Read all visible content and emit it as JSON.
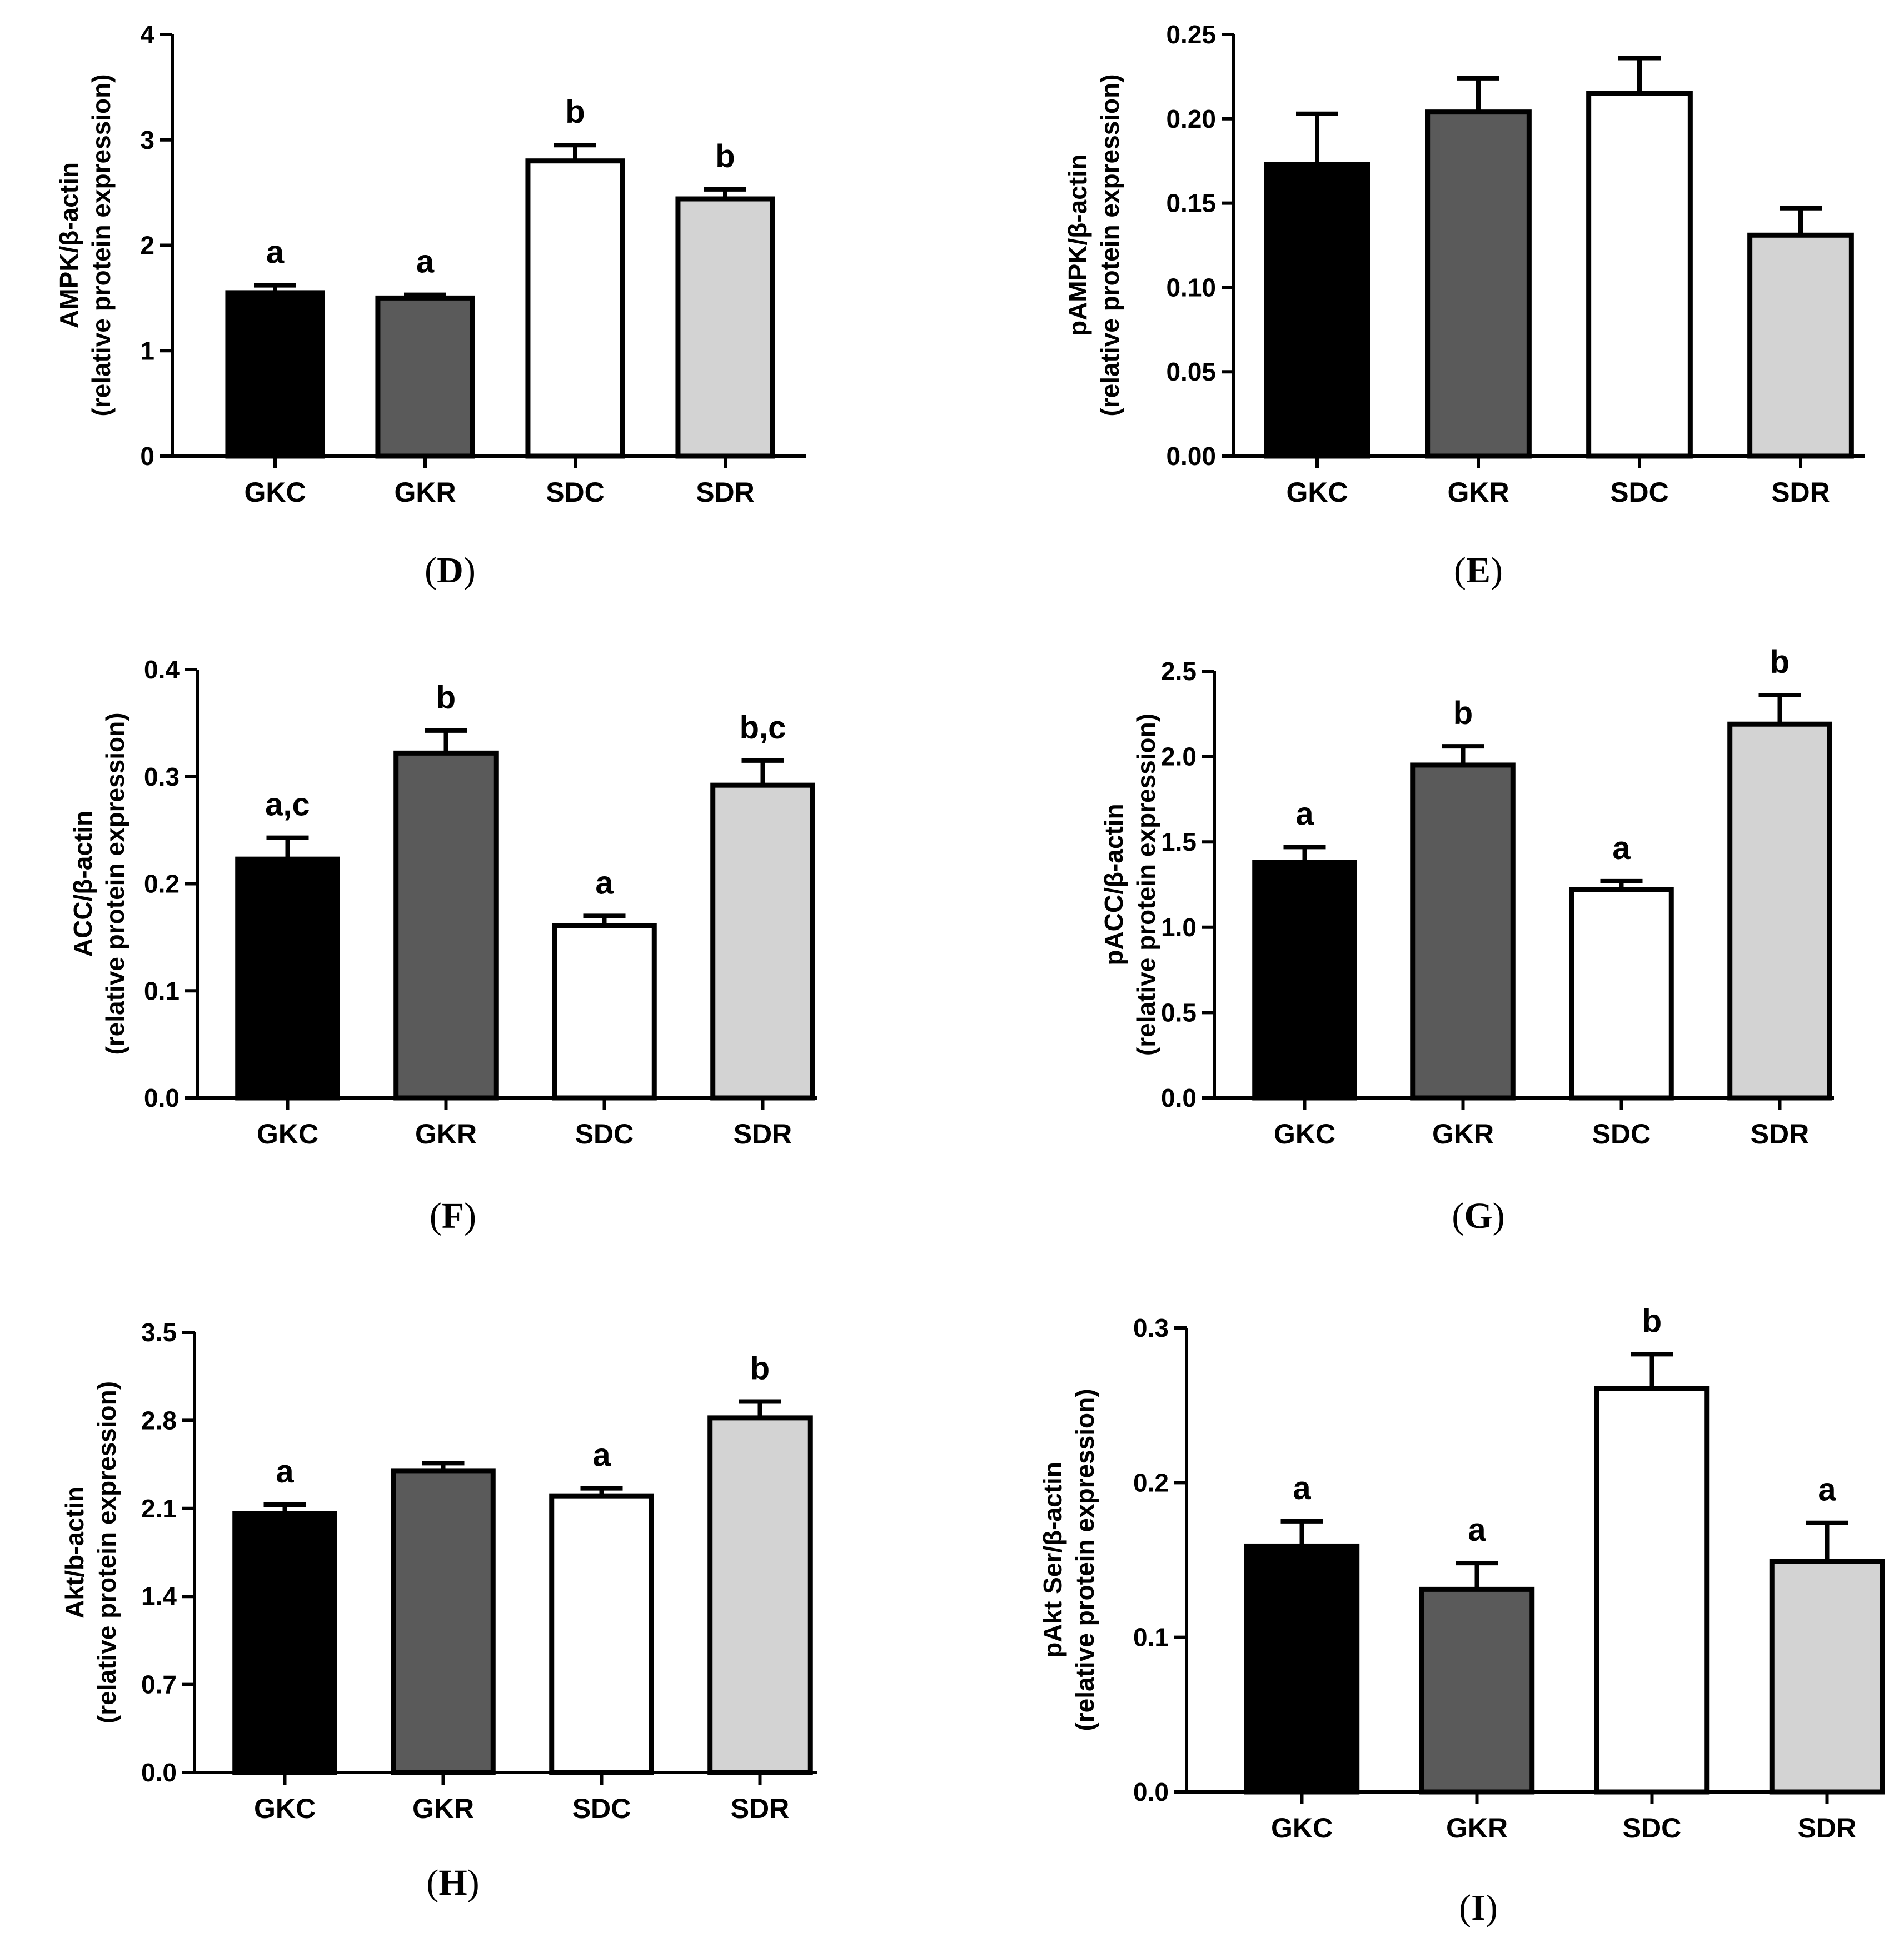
{
  "chart_data": [
    {
      "type": "bar",
      "panel_label": "D",
      "categories": [
        "GKC",
        "GKR",
        "SDC",
        "SDR"
      ],
      "values": [
        1.55,
        1.5,
        2.8,
        2.44
      ],
      "errors": [
        0.07,
        0.03,
        0.15,
        0.09
      ],
      "colors": [
        "#000000",
        "#5a5a5a",
        "#ffffff",
        "#d3d3d3"
      ],
      "sig_labels": [
        "a",
        "a",
        "b",
        "b"
      ],
      "ylabel_line1": "AMPK/β-actin",
      "ylabel_line2": "(relative protein expression)",
      "ylim": [
        0,
        4
      ],
      "yticks": [
        0,
        1,
        2,
        3,
        4
      ],
      "ytick_labels": [
        "0",
        "1",
        "2",
        "3",
        "4"
      ]
    },
    {
      "type": "bar",
      "panel_label": "E",
      "categories": [
        "GKC",
        "GKR",
        "SDC",
        "SDR"
      ],
      "values": [
        0.173,
        0.204,
        0.215,
        0.131
      ],
      "errors": [
        0.03,
        0.02,
        0.021,
        0.016
      ],
      "colors": [
        "#000000",
        "#5a5a5a",
        "#ffffff",
        "#d3d3d3"
      ],
      "sig_labels": [
        "",
        "",
        "",
        ""
      ],
      "ylabel_line1": "pAMPK/β-actin",
      "ylabel_line2": "(relative protein expression)",
      "ylim": [
        0,
        0.25
      ],
      "yticks": [
        0,
        0.05,
        0.1,
        0.15,
        0.2,
        0.25
      ],
      "ytick_labels": [
        "0.00",
        "0.05",
        "0.10",
        "0.15",
        "0.20",
        "0.25"
      ]
    },
    {
      "type": "bar",
      "panel_label": "F",
      "categories": [
        "GKC",
        "GKR",
        "SDC",
        "SDR"
      ],
      "values": [
        0.223,
        0.322,
        0.161,
        0.292
      ],
      "errors": [
        0.02,
        0.021,
        0.009,
        0.023
      ],
      "colors": [
        "#000000",
        "#5a5a5a",
        "#ffffff",
        "#d3d3d3"
      ],
      "sig_labels": [
        "a,c",
        "b",
        "a",
        "b,c"
      ],
      "ylabel_line1": "ACC/β-actin",
      "ylabel_line2": "(relative protein expression)",
      "ylim": [
        0,
        0.4
      ],
      "yticks": [
        0,
        0.1,
        0.2,
        0.3,
        0.4
      ],
      "ytick_labels": [
        "0.0",
        "0.1",
        "0.2",
        "0.3",
        "0.4"
      ]
    },
    {
      "type": "bar",
      "panel_label": "G",
      "categories": [
        "GKC",
        "GKR",
        "SDC",
        "SDR"
      ],
      "values": [
        1.38,
        1.95,
        1.22,
        2.19
      ],
      "errors": [
        0.09,
        0.11,
        0.05,
        0.17
      ],
      "colors": [
        "#000000",
        "#5a5a5a",
        "#ffffff",
        "#d3d3d3"
      ],
      "sig_labels": [
        "a",
        "b",
        "a",
        "b"
      ],
      "ylabel_line1": "pACC/β-actin",
      "ylabel_line2": "(relative protein expression)",
      "ylim": [
        0,
        2.5
      ],
      "yticks": [
        0,
        0.5,
        1.0,
        1.5,
        2.0,
        2.5
      ],
      "ytick_labels": [
        "0.0",
        "0.5",
        "1.0",
        "1.5",
        "2.0",
        "2.5"
      ]
    },
    {
      "type": "bar",
      "panel_label": "H",
      "categories": [
        "GKC",
        "GKR",
        "SDC",
        "SDR"
      ],
      "values": [
        2.06,
        2.4,
        2.2,
        2.82
      ],
      "errors": [
        0.07,
        0.06,
        0.06,
        0.13
      ],
      "colors": [
        "#000000",
        "#5a5a5a",
        "#ffffff",
        "#d3d3d3"
      ],
      "sig_labels": [
        "a",
        "",
        "a",
        "b"
      ],
      "ylabel_line1": "Akt/b-actin",
      "ylabel_line2": "(relative protein expression)",
      "ylim": [
        0,
        3.5
      ],
      "yticks": [
        0,
        0.7,
        1.4,
        2.1,
        2.8,
        3.5
      ],
      "ytick_labels": [
        "0.0",
        "0.7",
        "1.4",
        "2.1",
        "2.8",
        "3.5"
      ]
    },
    {
      "type": "bar",
      "panel_label": "I",
      "categories": [
        "GKC",
        "GKR",
        "SDC",
        "SDR"
      ],
      "values": [
        0.159,
        0.131,
        0.261,
        0.149
      ],
      "errors": [
        0.016,
        0.017,
        0.022,
        0.025
      ],
      "colors": [
        "#000000",
        "#5a5a5a",
        "#ffffff",
        "#d3d3d3"
      ],
      "sig_labels": [
        "a",
        "a",
        "b",
        "a"
      ],
      "ylabel_line1": "pAkt Ser/β-actin",
      "ylabel_line2": "(relative protein expression)",
      "ylim": [
        0,
        0.3
      ],
      "yticks": [
        0,
        0.1,
        0.2,
        0.3
      ],
      "ytick_labels": [
        "0.0",
        "0.1",
        "0.2",
        "0.3"
      ]
    }
  ]
}
